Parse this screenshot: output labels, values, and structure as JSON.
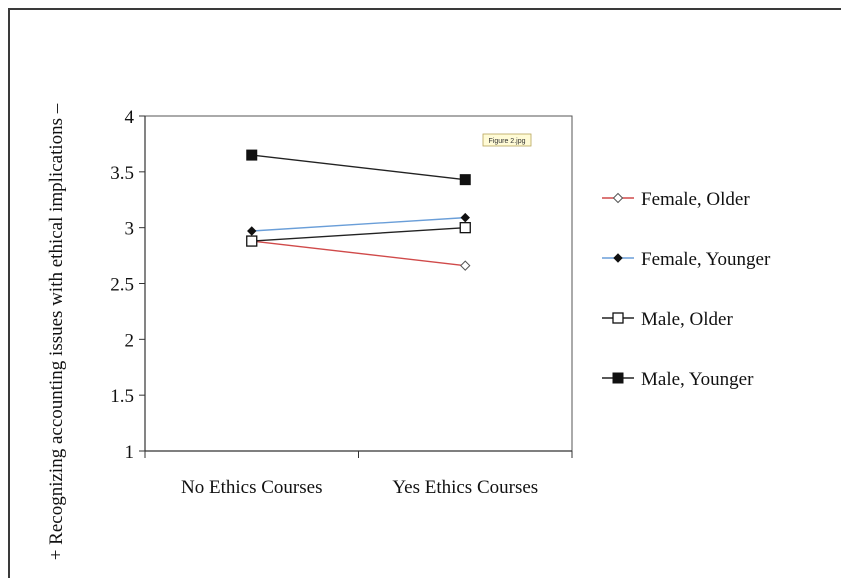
{
  "chart_data": {
    "type": "line",
    "title": "",
    "xlabel": "",
    "ylabel": "+ Recognizing accounting issues with ethical implications –",
    "ylim": [
      1,
      4
    ],
    "yticks": [
      "1",
      "1.5",
      "2",
      "2.5",
      "3",
      "3.5",
      "4"
    ],
    "categories": [
      "No Ethics Courses",
      "Yes Ethics Courses"
    ],
    "grid": false,
    "legend_position": "right",
    "series": [
      {
        "name": "Female, Older",
        "values": [
          2.88,
          2.66
        ],
        "color": "#d04a4a",
        "marker": "open-diamond"
      },
      {
        "name": "Female, Younger",
        "values": [
          2.97,
          3.09
        ],
        "color": "#6a9ed8",
        "marker": "filled-diamond"
      },
      {
        "name": "Male, Older",
        "values": [
          2.88,
          3.0
        ],
        "color": "#222222",
        "marker": "open-square"
      },
      {
        "name": "Male, Younger",
        "values": [
          3.65,
          3.43
        ],
        "color": "#222222",
        "marker": "filled-square"
      }
    ],
    "annotation": "Figure 2.jpg"
  }
}
